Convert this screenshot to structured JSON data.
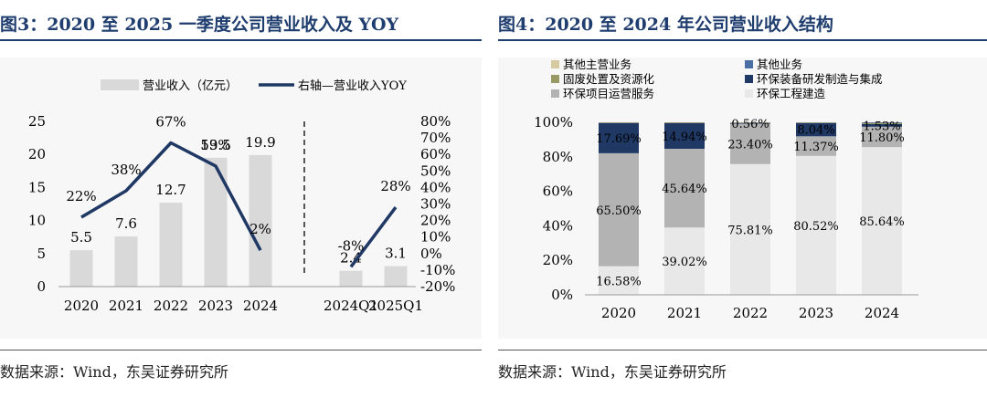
{
  "left": {
    "title": "图3：2020 至 2025 一季度公司营业收入及 YOY",
    "source": "数据来源：Wind，东吴证券研究所",
    "chart_data": {
      "type": "bar",
      "categories": [
        "2020",
        "2021",
        "2022",
        "2023",
        "2024",
        "2024Q1",
        "2025Q1"
      ],
      "series": [
        {
          "name": "营业收入（亿元）",
          "type": "bar",
          "axis": "left",
          "values": [
            5.5,
            7.6,
            12.7,
            19.5,
            19.9,
            2.4,
            3.1
          ],
          "labels": [
            "5.5",
            "7.6",
            "12.7",
            "19.5",
            "19.9",
            "2.4",
            "3.1"
          ]
        },
        {
          "name": "右轴—营业收入YOY",
          "type": "line",
          "axis": "right",
          "segments": [
            [
              0,
              1,
              2,
              3,
              4
            ],
            [
              5,
              6
            ]
          ],
          "values": [
            22,
            38,
            67,
            53,
            2,
            -8,
            28
          ],
          "labels": [
            "22%",
            "38%",
            "67%",
            "53%",
            "2%",
            "-8%",
            "28%"
          ]
        }
      ],
      "y_left": {
        "range": [
          0,
          25
        ],
        "ticks": [
          "0",
          "5",
          "10",
          "15",
          "20",
          "25"
        ]
      },
      "y_right": {
        "range": [
          -20,
          80
        ],
        "ticks": [
          "-20%",
          "-10%",
          "0%",
          "10%",
          "20%",
          "30%",
          "40%",
          "50%",
          "60%",
          "70%",
          "80%"
        ]
      },
      "legend_position": "top",
      "colors": {
        "bar": "#d9d9d9",
        "line": "#1f3864"
      }
    }
  },
  "right": {
    "title": "图4：2020 至 2024 年公司营业收入结构",
    "source": "数据来源：Wind，东吴证券研究所",
    "chart_data": {
      "type": "bar",
      "stacked": true,
      "categories": [
        "2020",
        "2021",
        "2022",
        "2023",
        "2024"
      ],
      "series": [
        {
          "name": "环保工程建造",
          "color": "#e8e8e8",
          "values": [
            16.58,
            39.02,
            75.81,
            80.52,
            85.64
          ],
          "labels": [
            "16.58%",
            "39.02%",
            "75.81%",
            "80.52%",
            "85.64%"
          ]
        },
        {
          "name": "环保项目运营服务",
          "color": "#b3b3b3",
          "values": [
            65.5,
            45.64,
            23.4,
            11.37,
            11.8
          ],
          "labels": [
            "65.50%",
            "45.64%",
            "23.40%",
            "11.37%",
            "11.80%"
          ]
        },
        {
          "name": "环保装备研发制造与集成",
          "color": "#1f3864",
          "values": [
            17.69,
            14.94,
            0.56,
            8.04,
            1.53
          ],
          "labels": [
            "17.69%",
            "14.94%",
            "0.56%",
            "8.04%",
            "1.53%"
          ]
        },
        {
          "name": "固废处置及资源化",
          "color": "#999966",
          "values": [
            0.2,
            0.4,
            0.2,
            0.05,
            1.0
          ],
          "labels": []
        },
        {
          "name": "其他业务",
          "color": "#4a6fa5",
          "values": [
            0,
            0,
            0,
            0,
            0.03
          ],
          "labels": []
        },
        {
          "name": "其他主营业务",
          "color": "#d6cba0",
          "values": [
            0.03,
            0,
            0.03,
            0.02,
            0
          ],
          "labels": []
        }
      ],
      "legend_order": [
        "其他主营业务",
        "其他业务",
        "固废处置及资源化",
        "环保装备研发制造与集成",
        "环保项目运营服务",
        "环保工程建造"
      ],
      "y": {
        "range": [
          0,
          100
        ],
        "ticks": [
          "0%",
          "20%",
          "40%",
          "60%",
          "80%",
          "100%"
        ]
      },
      "legend_position": "top"
    }
  }
}
